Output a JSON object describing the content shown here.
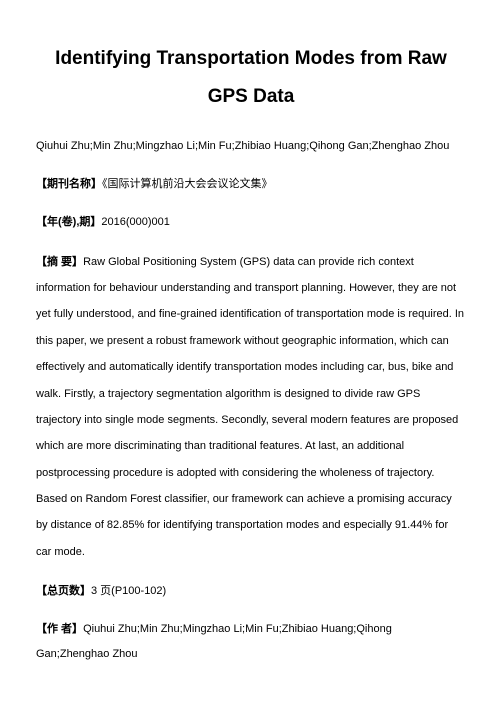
{
  "title": "Identifying Transportation Modes from Raw GPS Data",
  "authors": "Qiuhui Zhu;Min Zhu;Mingzhao Li;Min Fu;Zhibiao Huang;Qihong Gan;Zhenghao Zhou",
  "journal": {
    "label": "【期刊名称】",
    "value": "《国际计算机前沿大会会议论文集》"
  },
  "issue": {
    "label": "【年(卷),期】",
    "value": "2016(000)001"
  },
  "abstract": {
    "label": "【摘 要】",
    "value": "Raw Global Positioning System (GPS) data can provide rich context information for behaviour understanding and transport planning. However, they are not yet fully understood, and fine-grained identification of transportation mode is required. In this paper, we present a robust framework without geographic information, which can effectively and automatically identify transportation modes including car, bus, bike and walk. Firstly, a trajectory segmentation algorithm is designed to divide raw GPS trajectory into single mode segments. Secondly, several modern features are proposed which are more discriminating than traditional features. At last, an additional postprocessing procedure is adopted with considering the wholeness of trajectory. Based on Random Forest classifier, our framework can achieve a promising accuracy by distance of 82.85% for identifying transportation modes and especially 91.44% for car mode."
  },
  "pages": {
    "label": "【总页数】",
    "value": "3 页(P100-102)"
  },
  "authors_field": {
    "label": "【作 者】",
    "value": "Qiuhui Zhu;Min Zhu;Mingzhao Li;Min Fu;Zhibiao Huang;Qihong Gan;Zhenghao Zhou"
  }
}
